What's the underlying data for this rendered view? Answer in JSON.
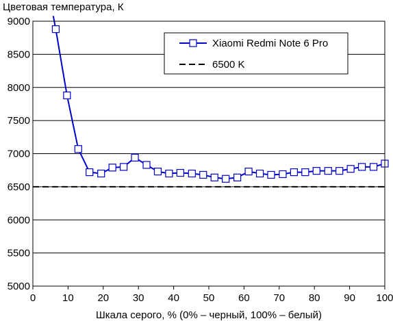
{
  "chart_data": {
    "type": "line",
    "title": "Цветовая температура, К",
    "xlabel": "Шкала серого, % (0% – черный, 100% – белый)",
    "ylabel": "",
    "xlim": [
      0,
      100
    ],
    "ylim": [
      5000,
      9000
    ],
    "xticks": [
      0,
      10,
      20,
      30,
      40,
      50,
      60,
      70,
      80,
      90,
      100
    ],
    "yticks": [
      5000,
      5500,
      6000,
      6500,
      7000,
      7500,
      8000,
      8500,
      9000
    ],
    "grid": "horizontal",
    "legend_position": "top-right",
    "series": [
      {
        "name": "Xiaomi Redmi Note 6 Pro",
        "color": "#0000cc",
        "marker": "open-square",
        "x": [
          6.5,
          9.7,
          12.9,
          16.1,
          19.4,
          22.6,
          25.8,
          29.0,
          32.3,
          35.5,
          38.7,
          41.9,
          45.2,
          48.4,
          51.6,
          54.8,
          58.1,
          61.3,
          64.5,
          67.7,
          71.0,
          74.2,
          77.4,
          80.6,
          83.9,
          87.1,
          90.3,
          93.5,
          96.8,
          100
        ],
        "y": [
          8880,
          7880,
          7070,
          6720,
          6700,
          6790,
          6800,
          6940,
          6830,
          6730,
          6700,
          6710,
          6700,
          6680,
          6640,
          6620,
          6640,
          6730,
          6700,
          6680,
          6690,
          6720,
          6720,
          6740,
          6740,
          6740,
          6770,
          6800,
          6800,
          6850
        ],
        "line_start": {
          "x": 5.8,
          "y": 9080
        }
      },
      {
        "name": "6500 K",
        "color": "#000000",
        "style": "dashed",
        "x": [
          0,
          100
        ],
        "y": [
          6500,
          6500
        ]
      }
    ]
  }
}
